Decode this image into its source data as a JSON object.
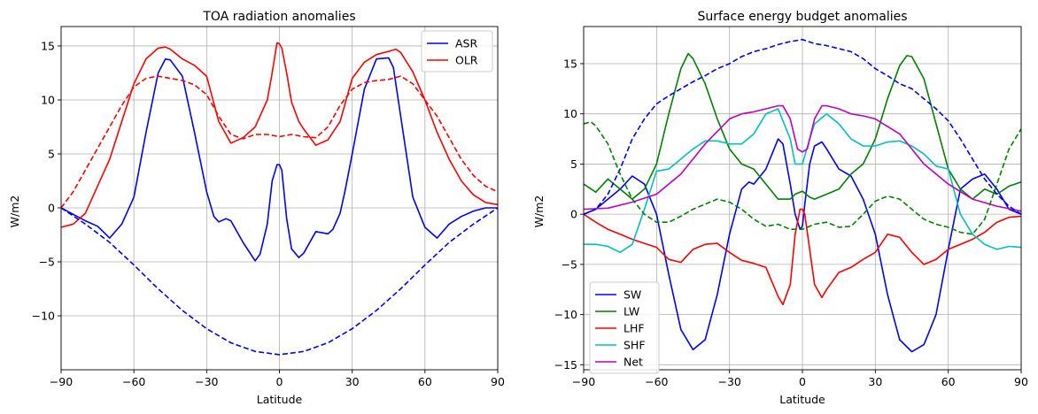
{
  "chart_data": [
    {
      "type": "line",
      "title": "TOA radiation anomalies",
      "xlabel": "Latitude",
      "ylabel": "W/m2",
      "xlim": [
        -90,
        90
      ],
      "ylim": [
        -15,
        16.8
      ],
      "xticks": [
        -90,
        -60,
        -30,
        0,
        30,
        60,
        90
      ],
      "xtick_labels": [
        "−90",
        "−60",
        "−30",
        "0",
        "30",
        "60",
        "90"
      ],
      "yticks": [
        -10,
        -5,
        0,
        5,
        10,
        15
      ],
      "ytick_labels": [
        "−10",
        "−5",
        "0",
        "5",
        "10",
        "15"
      ],
      "grid": true,
      "legend": "upper-right",
      "series": [
        {
          "name": "ASR",
          "color": "#0000ff",
          "style": "solid",
          "legend": true,
          "x": [
            -90,
            -85,
            -80,
            -75,
            -70,
            -65,
            -60,
            -55,
            -50,
            -47,
            -45,
            -40,
            -35,
            -30,
            -27,
            -25,
            -22,
            -20,
            -15,
            -10,
            -8,
            -5,
            -3,
            -1,
            0,
            1,
            3,
            5,
            8,
            10,
            15,
            20,
            22,
            25,
            27,
            30,
            35,
            40,
            45,
            47,
            50,
            55,
            60,
            65,
            70,
            75,
            80,
            85,
            90
          ],
          "y": [
            0,
            -0.6,
            -1.2,
            -1.7,
            -2.8,
            -1.5,
            1.0,
            7.0,
            12.5,
            13.8,
            13.7,
            12.2,
            7.0,
            1.5,
            -0.8,
            -1.3,
            -1.0,
            -1.2,
            -3.2,
            -4.9,
            -4.3,
            -1.5,
            2.5,
            4.0,
            4.0,
            3.5,
            -1.0,
            -3.8,
            -4.6,
            -4.2,
            -2.2,
            -2.4,
            -2.0,
            -0.5,
            1.5,
            5.0,
            11.0,
            13.8,
            13.9,
            13.0,
            8.5,
            1.0,
            -1.8,
            -2.8,
            -1.5,
            -0.8,
            -0.3,
            0.0,
            0.0
          ]
        },
        {
          "name": "OLR",
          "color": "#ff0000",
          "style": "solid",
          "legend": true,
          "x": [
            -90,
            -85,
            -80,
            -75,
            -70,
            -65,
            -60,
            -55,
            -50,
            -47,
            -45,
            -40,
            -35,
            -30,
            -25,
            -20,
            -15,
            -10,
            -5,
            -3,
            -1,
            0,
            1,
            3,
            5,
            8,
            10,
            15,
            20,
            25,
            30,
            35,
            40,
            45,
            48,
            50,
            55,
            60,
            65,
            70,
            75,
            80,
            85,
            90
          ],
          "y": [
            -1.8,
            -1.5,
            -0.5,
            2.0,
            4.5,
            8.0,
            11.5,
            13.8,
            14.8,
            14.9,
            14.7,
            13.8,
            13.2,
            12.2,
            8.0,
            6.0,
            6.5,
            7.5,
            10.0,
            12.5,
            15.3,
            15.2,
            14.8,
            12.5,
            9.8,
            8.0,
            7.3,
            5.8,
            6.3,
            8.0,
            12.0,
            13.5,
            14.2,
            14.5,
            14.7,
            14.4,
            12.6,
            10.0,
            7.0,
            4.5,
            2.5,
            1.2,
            0.5,
            0.3
          ]
        },
        {
          "name": "",
          "color": "#0000ff",
          "style": "dashed",
          "legend": false,
          "x": [
            -90,
            -80,
            -70,
            -60,
            -50,
            -40,
            -30,
            -20,
            -10,
            0,
            10,
            20,
            30,
            40,
            50,
            60,
            70,
            80,
            90
          ],
          "y": [
            0,
            -1.5,
            -3.2,
            -5.3,
            -7.5,
            -9.5,
            -11.2,
            -12.5,
            -13.3,
            -13.6,
            -13.3,
            -12.5,
            -11.2,
            -9.5,
            -7.5,
            -5.3,
            -3.2,
            -1.5,
            0
          ]
        },
        {
          "name": "",
          "color": "#ff0000",
          "style": "dashed",
          "legend": false,
          "x": [
            -90,
            -85,
            -80,
            -75,
            -70,
            -65,
            -60,
            -55,
            -50,
            -45,
            -40,
            -35,
            -30,
            -25,
            -20,
            -15,
            -10,
            -5,
            0,
            5,
            10,
            15,
            20,
            25,
            30,
            35,
            40,
            45,
            50,
            55,
            60,
            65,
            70,
            75,
            80,
            85,
            90
          ],
          "y": [
            0,
            1.5,
            3.5,
            5.5,
            7.5,
            9.5,
            11.2,
            12.0,
            12.2,
            12.0,
            11.8,
            11.4,
            10.5,
            8.5,
            6.8,
            6.4,
            6.8,
            6.8,
            6.6,
            6.8,
            6.6,
            6.5,
            7.5,
            9.5,
            11.0,
            11.6,
            11.8,
            11.9,
            12.2,
            11.5,
            10.0,
            8.5,
            6.5,
            4.5,
            3.0,
            2.0,
            1.5
          ]
        }
      ]
    },
    {
      "type": "line",
      "title": "Surface energy budget anomalies",
      "xlabel": "Latitude",
      "ylabel": "W/m2",
      "xlim": [
        -90,
        90
      ],
      "ylim": [
        -15.5,
        18.7
      ],
      "xticks": [
        -90,
        -60,
        -30,
        0,
        30,
        60,
        90
      ],
      "xtick_labels": [
        "−90",
        "−60",
        "−30",
        "0",
        "30",
        "60",
        "90"
      ],
      "yticks": [
        -15,
        -10,
        -5,
        0,
        5,
        10,
        15
      ],
      "ytick_labels": [
        "−15",
        "−10",
        "−5",
        "0",
        "5",
        "10",
        "15"
      ],
      "grid": true,
      "legend": "lower-left",
      "series": [
        {
          "name": "SW",
          "color": "#0000ff",
          "style": "solid",
          "legend": true,
          "x": [
            -90,
            -85,
            -80,
            -75,
            -70,
            -65,
            -60,
            -55,
            -50,
            -45,
            -40,
            -35,
            -30,
            -25,
            -22,
            -20,
            -15,
            -10,
            -8,
            -5,
            -3,
            -1,
            0,
            1,
            3,
            5,
            8,
            10,
            15,
            20,
            25,
            30,
            35,
            40,
            45,
            50,
            55,
            60,
            65,
            70,
            75,
            80,
            85,
            90
          ],
          "y": [
            0,
            0.5,
            1.5,
            2.5,
            3.8,
            3.0,
            0.0,
            -6.0,
            -11.5,
            -13.5,
            -12.5,
            -8.0,
            -2.0,
            2.5,
            3.2,
            3.0,
            4.5,
            7.5,
            7.0,
            3.0,
            0.0,
            -1.5,
            -1.2,
            1.0,
            5.0,
            6.8,
            7.2,
            6.5,
            4.5,
            3.8,
            1.5,
            -2.0,
            -8.0,
            -12.5,
            -13.7,
            -13.0,
            -10.0,
            -3.5,
            2.5,
            3.5,
            4.0,
            2.5,
            0.5,
            0.0
          ]
        },
        {
          "name": "LW",
          "color": "#008000",
          "style": "solid",
          "legend": true,
          "x": [
            -90,
            -85,
            -80,
            -75,
            -70,
            -65,
            -60,
            -55,
            -50,
            -47,
            -45,
            -40,
            -35,
            -30,
            -25,
            -20,
            -15,
            -10,
            -5,
            -3,
            0,
            3,
            5,
            10,
            15,
            20,
            25,
            30,
            35,
            40,
            43,
            45,
            50,
            55,
            60,
            65,
            70,
            75,
            80,
            85,
            90
          ],
          "y": [
            3.0,
            2.2,
            3.5,
            2.5,
            1.5,
            2.5,
            5.0,
            10.0,
            14.5,
            16.0,
            15.5,
            13.0,
            9.5,
            6.5,
            5.0,
            4.5,
            3.0,
            1.5,
            1.5,
            2.0,
            2.3,
            1.7,
            1.5,
            2.0,
            2.5,
            4.0,
            5.0,
            7.5,
            11.5,
            14.8,
            15.8,
            15.7,
            13.5,
            9.0,
            4.5,
            2.5,
            1.5,
            2.5,
            2.0,
            2.8,
            3.2
          ]
        },
        {
          "name": "LHF",
          "color": "#ff0000",
          "style": "solid",
          "legend": true,
          "x": [
            -90,
            -85,
            -80,
            -75,
            -70,
            -65,
            -60,
            -55,
            -50,
            -45,
            -40,
            -35,
            -30,
            -25,
            -20,
            -15,
            -10,
            -8,
            -5,
            -3,
            -1,
            0,
            1,
            3,
            5,
            8,
            10,
            15,
            20,
            25,
            30,
            35,
            40,
            45,
            50,
            55,
            60,
            65,
            70,
            75,
            80,
            85,
            90
          ],
          "y": [
            0,
            -0.8,
            -1.5,
            -2.0,
            -2.5,
            -2.9,
            -3.3,
            -4.5,
            -4.8,
            -3.5,
            -3.0,
            -2.9,
            -3.8,
            -4.6,
            -4.9,
            -5.3,
            -8.2,
            -9.0,
            -7.0,
            -2.0,
            0.5,
            0.5,
            0.0,
            -3.5,
            -7.0,
            -8.3,
            -7.5,
            -5.8,
            -5.3,
            -4.5,
            -3.8,
            -2.0,
            -2.3,
            -3.8,
            -5.0,
            -4.5,
            -3.5,
            -3.0,
            -2.5,
            -1.8,
            -0.8,
            -0.3,
            -0.2
          ]
        },
        {
          "name": "SHF",
          "color": "#00bfbf",
          "style": "solid",
          "legend": true,
          "x": [
            -90,
            -85,
            -80,
            -75,
            -70,
            -65,
            -60,
            -55,
            -50,
            -45,
            -40,
            -35,
            -30,
            -25,
            -20,
            -15,
            -10,
            -5,
            -3,
            0,
            3,
            5,
            10,
            15,
            20,
            25,
            30,
            35,
            40,
            45,
            50,
            55,
            60,
            65,
            70,
            75,
            80,
            85,
            90
          ],
          "y": [
            -3.0,
            -3.0,
            -3.2,
            -3.8,
            -3.0,
            0.5,
            4.3,
            4.5,
            5.5,
            6.5,
            7.3,
            7.3,
            7.0,
            7.0,
            8.0,
            10.0,
            10.5,
            7.5,
            5.0,
            5.0,
            7.5,
            9.0,
            10.0,
            9.0,
            7.5,
            6.8,
            6.8,
            7.2,
            7.3,
            6.8,
            6.0,
            4.8,
            4.5,
            0.0,
            -2.0,
            -3.0,
            -3.5,
            -3.2,
            -3.3
          ]
        },
        {
          "name": "Net",
          "color": "#bf00bf",
          "style": "solid",
          "legend": true,
          "x": [
            -90,
            -80,
            -70,
            -60,
            -50,
            -40,
            -30,
            -25,
            -20,
            -15,
            -10,
            -8,
            -5,
            -2,
            0,
            2,
            5,
            8,
            10,
            15,
            20,
            25,
            30,
            40,
            50,
            60,
            70,
            80,
            90
          ],
          "y": [
            0.5,
            0.6,
            1.2,
            2.0,
            4.0,
            7.0,
            9.5,
            10.0,
            10.2,
            10.5,
            10.8,
            10.8,
            9.5,
            6.5,
            6.2,
            6.5,
            9.5,
            10.8,
            10.8,
            10.5,
            10.0,
            9.8,
            9.5,
            8.0,
            5.0,
            3.0,
            1.5,
            0.8,
            0.3
          ]
        },
        {
          "name": "",
          "color": "#0000ff",
          "style": "dashed",
          "legend": false,
          "x": [
            -90,
            -85,
            -80,
            -75,
            -70,
            -65,
            -60,
            -55,
            -50,
            -45,
            -40,
            -35,
            -30,
            -25,
            -20,
            -15,
            -10,
            -5,
            0,
            5,
            10,
            15,
            20,
            25,
            30,
            35,
            40,
            45,
            50,
            55,
            60,
            65,
            70,
            75,
            80,
            85,
            90
          ],
          "y": [
            0,
            0.5,
            2.0,
            4.5,
            7.5,
            9.5,
            11.0,
            11.8,
            12.5,
            13.2,
            13.8,
            14.5,
            15.0,
            15.7,
            16.2,
            16.5,
            16.9,
            17.2,
            17.4,
            17.0,
            16.8,
            16.5,
            16.2,
            15.5,
            14.5,
            13.8,
            13.0,
            12.5,
            11.5,
            10.5,
            9.3,
            7.5,
            5.5,
            3.5,
            2.0,
            0.8,
            0.0
          ]
        },
        {
          "name": "",
          "color": "#008000",
          "style": "dashed",
          "legend": false,
          "x": [
            -90,
            -87,
            -85,
            -80,
            -75,
            -70,
            -65,
            -60,
            -55,
            -50,
            -45,
            -40,
            -35,
            -30,
            -25,
            -20,
            -15,
            -10,
            -5,
            0,
            5,
            10,
            15,
            20,
            25,
            30,
            35,
            40,
            45,
            50,
            55,
            60,
            65,
            70,
            75,
            80,
            85,
            90
          ],
          "y": [
            9.0,
            9.2,
            8.8,
            7.0,
            4.0,
            1.5,
            0.0,
            -0.8,
            -0.8,
            -0.2,
            0.5,
            1.0,
            1.5,
            1.2,
            0.5,
            -0.5,
            -1.2,
            -1.0,
            -1.5,
            -1.5,
            -1.0,
            -0.8,
            -1.3,
            -1.2,
            0.0,
            1.3,
            1.8,
            1.5,
            0.5,
            -0.5,
            -1.0,
            -1.3,
            -1.8,
            -2.0,
            -0.5,
            3.0,
            6.5,
            8.5
          ]
        }
      ]
    }
  ]
}
